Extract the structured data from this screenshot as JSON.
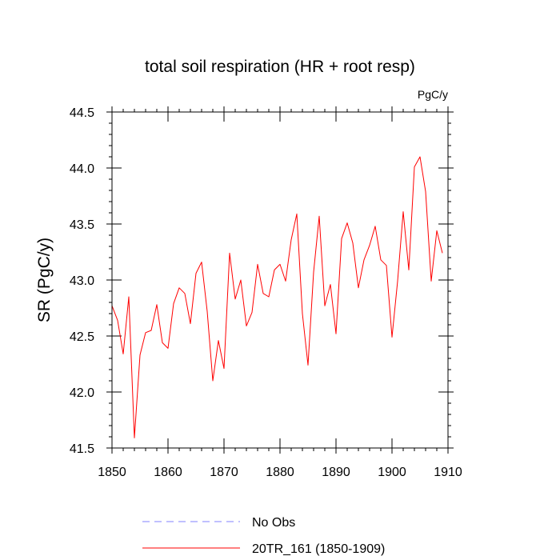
{
  "chart_data": {
    "type": "line",
    "title": "total soil respiration (HR + root resp)",
    "units_label": "PgC/y",
    "xlabel": "",
    "ylabel": "SR  (PgC/y)",
    "xlim": [
      1850,
      1910
    ],
    "ylim": [
      41.5,
      44.5
    ],
    "x_ticks": [
      1850,
      1860,
      1870,
      1880,
      1890,
      1900,
      1910
    ],
    "y_ticks": [
      41.5,
      42.0,
      42.5,
      43.0,
      43.5,
      44.0,
      44.5
    ],
    "x_tick_labels": [
      "1850",
      "1860",
      "1870",
      "1880",
      "1890",
      "1900",
      "1910"
    ],
    "y_tick_labels": [
      "41.5",
      "42.0",
      "42.5",
      "43.0",
      "43.5",
      "44.0",
      "44.5"
    ],
    "grid": false,
    "series": [
      {
        "name": "20TR_161 (1850-1909)",
        "color": "#ff0000",
        "style": "solid",
        "x": [
          1850,
          1851,
          1852,
          1853,
          1854,
          1855,
          1856,
          1857,
          1858,
          1859,
          1860,
          1861,
          1862,
          1863,
          1864,
          1865,
          1866,
          1867,
          1868,
          1869,
          1870,
          1871,
          1872,
          1873,
          1874,
          1875,
          1876,
          1877,
          1878,
          1879,
          1880,
          1881,
          1882,
          1883,
          1884,
          1885,
          1886,
          1887,
          1888,
          1889,
          1890,
          1891,
          1892,
          1893,
          1894,
          1895,
          1896,
          1897,
          1898,
          1899,
          1900,
          1901,
          1902,
          1903,
          1904,
          1905,
          1906,
          1907,
          1908,
          1909
        ],
        "values": [
          42.77,
          42.64,
          42.34,
          42.85,
          41.59,
          42.33,
          42.53,
          42.55,
          42.78,
          42.44,
          42.39,
          42.79,
          42.93,
          42.88,
          42.61,
          43.06,
          43.16,
          42.72,
          42.1,
          42.46,
          42.21,
          43.24,
          42.83,
          43.0,
          42.59,
          42.71,
          43.14,
          42.88,
          42.85,
          43.09,
          43.14,
          42.99,
          43.36,
          43.59,
          42.7,
          42.24,
          43.07,
          43.57,
          42.77,
          42.96,
          42.52,
          43.37,
          43.51,
          43.33,
          42.93,
          43.18,
          43.31,
          43.48,
          43.18,
          43.13,
          42.49,
          42.99,
          43.61,
          43.09,
          44.01,
          44.1,
          43.79,
          42.99,
          43.44,
          43.24
        ]
      },
      {
        "name": "No Obs",
        "color": "#8080ff",
        "style": "dashed",
        "x": [],
        "values": []
      }
    ],
    "legend": {
      "position": "bottom",
      "entries": [
        {
          "label": "No Obs",
          "color": "#8080ff",
          "style": "dashed"
        },
        {
          "label": "20TR_161 (1850-1909)",
          "color": "#ff0000",
          "style": "solid"
        }
      ]
    }
  }
}
